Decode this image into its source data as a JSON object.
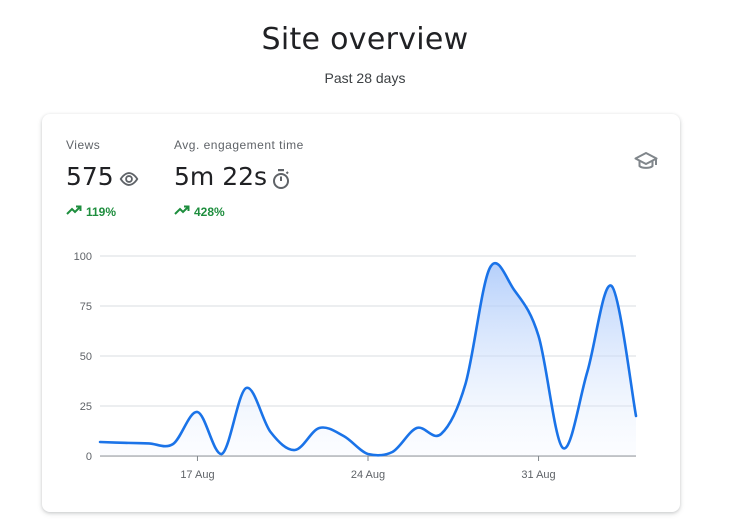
{
  "page": {
    "title": "Site overview",
    "subtitle": "Past 28 days"
  },
  "metrics": [
    {
      "label": "Views",
      "value": "575",
      "change": "119%",
      "icon": "eye-icon"
    },
    {
      "label": "Avg. engagement time",
      "value": "5m 22s",
      "change": "428%",
      "icon": "timer-icon"
    }
  ],
  "card_icon": "school-hat-icon",
  "colors": {
    "line": "#1a73e8",
    "area_top": "#a8c7fa",
    "positive": "#1e8e3e",
    "grid": "#dadce0",
    "icon": "#5f6368"
  },
  "chart_data": {
    "type": "area",
    "x_tick_labels": [
      "17 Aug",
      "24 Aug",
      "31 Aug"
    ],
    "x_tick_index": [
      4,
      11,
      18
    ],
    "y_ticks": [
      0,
      25,
      50,
      75,
      100
    ],
    "ylim": [
      0,
      100
    ],
    "x_count": 23,
    "values": [
      7,
      6.6,
      6.3,
      6,
      22,
      1,
      34,
      12,
      3,
      14,
      10,
      1,
      2,
      14,
      11,
      36,
      94,
      83,
      60,
      4,
      42,
      85,
      20
    ],
    "grid": true,
    "legend": "none"
  }
}
